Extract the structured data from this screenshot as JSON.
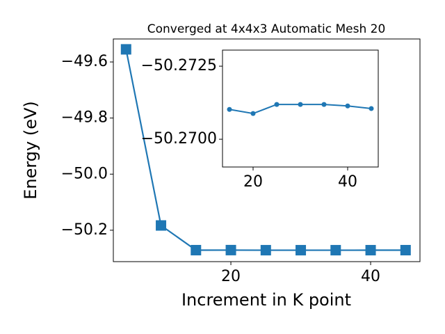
{
  "chart_data": [
    {
      "type": "line",
      "title": "Converged at 4x4x3 Automatic Mesh 20",
      "x_label": "Increment in K point",
      "y_label": "Energy (eV)",
      "x": [
        5,
        10,
        15,
        20,
        25,
        30,
        35,
        40,
        45
      ],
      "series": [
        {
          "color": "#1f77b4",
          "marker": "square",
          "values": [
            -49.555,
            -50.183,
            -50.27102,
            -50.27088,
            -50.27119,
            -50.27119,
            -50.27119,
            -50.27114,
            -50.27105
          ]
        }
      ],
      "xlim": [
        3.18,
        47.06
      ],
      "ylim": [
        -50.312,
        -49.518
      ],
      "xticks": [
        20,
        40
      ],
      "yticks": [
        {
          "value": -50.2,
          "label": "−50.2"
        },
        {
          "value": -50.0,
          "label": "−50.0"
        },
        {
          "value": -49.8,
          "label": "−49.8"
        },
        {
          "value": -49.6,
          "label": "−49.6"
        }
      ]
    },
    {
      "type": "line",
      "x": [
        15,
        20,
        25,
        30,
        35,
        40,
        45
      ],
      "series": [
        {
          "color": "#1f77b4",
          "marker": "circle",
          "values": [
            -50.27102,
            -50.27088,
            -50.27119,
            -50.27119,
            -50.27119,
            -50.27114,
            -50.27105
          ]
        }
      ],
      "xlim": [
        13.53,
        46.47
      ],
      "ylim": [
        -50.26905,
        -50.27305
      ],
      "xticks": [
        20,
        40
      ],
      "yticks": [
        {
          "value": -50.27,
          "label": "−50.2700"
        },
        {
          "value": -50.2725,
          "label": "−50.2725"
        }
      ]
    }
  ]
}
